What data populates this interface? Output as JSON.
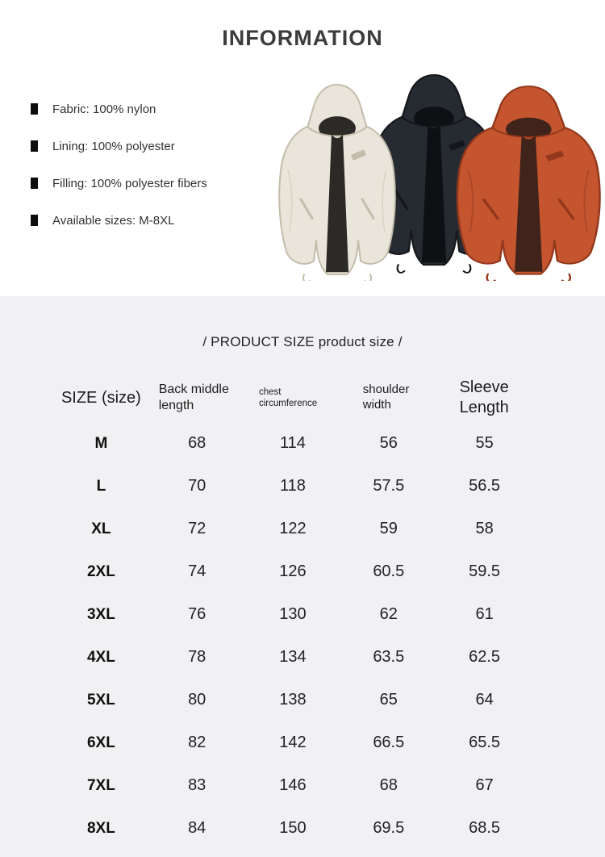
{
  "page_title": "INFORMATION",
  "specs": {
    "items": [
      "Fabric: 100% nylon",
      "Lining: 100% polyester",
      "Filling: 100% polyester fibers",
      "Available sizes: M-8XL"
    ]
  },
  "product_photo": {
    "description": "Three hooded puffer jackets shown side by side",
    "jackets": [
      {
        "position": "left",
        "color_name": "cream",
        "color": "#e9e5da"
      },
      {
        "position": "middle",
        "color_name": "black",
        "color": "#262a31"
      },
      {
        "position": "right",
        "color_name": "orange",
        "color": "#c4552f"
      }
    ]
  },
  "size_table": {
    "heading": "/ PRODUCT SIZE product size /",
    "columns": [
      "SIZE (size)",
      "Back middle length",
      "chest circumference",
      "shoulder width",
      "Sleeve Length"
    ],
    "rows": [
      [
        "M",
        "68",
        "114",
        "56",
        "55"
      ],
      [
        "L",
        "70",
        "118",
        "57.5",
        "56.5"
      ],
      [
        "XL",
        "72",
        "122",
        "59",
        "58"
      ],
      [
        "2XL",
        "74",
        "126",
        "60.5",
        "59.5"
      ],
      [
        "3XL",
        "76",
        "130",
        "62",
        "61"
      ],
      [
        "4XL",
        "78",
        "134",
        "63.5",
        "62.5"
      ],
      [
        "5XL",
        "80",
        "138",
        "65",
        "64"
      ],
      [
        "6XL",
        "82",
        "142",
        "66.5",
        "65.5"
      ],
      [
        "7XL",
        "83",
        "146",
        "68",
        "67"
      ],
      [
        "8XL",
        "84",
        "150",
        "69.5",
        "68.5"
      ]
    ]
  }
}
